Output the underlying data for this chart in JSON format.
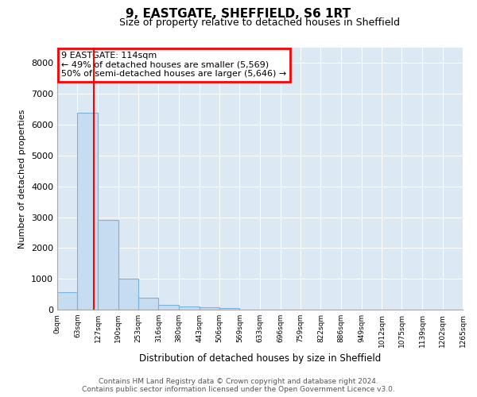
{
  "title": "9, EASTGATE, SHEFFIELD, S6 1RT",
  "subtitle": "Size of property relative to detached houses in Sheffield",
  "xlabel": "Distribution of detached houses by size in Sheffield",
  "ylabel": "Number of detached properties",
  "bar_color": "#c6dcf0",
  "bar_edge_color": "#7ab3d8",
  "background_color": "#dde8f5",
  "bin_edges": [
    0,
    63,
    127,
    190,
    253,
    316,
    380,
    443,
    506,
    569,
    633,
    696,
    759,
    822,
    886,
    949,
    1012,
    1075,
    1139,
    1202,
    1265
  ],
  "bar_heights": [
    560,
    6400,
    2900,
    1000,
    380,
    165,
    100,
    65,
    50,
    10,
    5,
    3,
    2,
    1,
    1,
    1,
    0,
    0,
    0,
    0
  ],
  "tick_labels": [
    "0sqm",
    "63sqm",
    "127sqm",
    "190sqm",
    "253sqm",
    "316sqm",
    "380sqm",
    "443sqm",
    "506sqm",
    "569sqm",
    "633sqm",
    "696sqm",
    "759sqm",
    "822sqm",
    "886sqm",
    "949sqm",
    "1012sqm",
    "1075sqm",
    "1139sqm",
    "1202sqm",
    "1265sqm"
  ],
  "ylim": [
    0,
    8500
  ],
  "yticks": [
    0,
    1000,
    2000,
    3000,
    4000,
    5000,
    6000,
    7000,
    8000
  ],
  "red_line_x": 114,
  "annotation_title": "9 EASTGATE: 114sqm",
  "annotation_line1": "← 49% of detached houses are smaller (5,569)",
  "annotation_line2": "50% of semi-detached houses are larger (5,646) →",
  "footer_line1": "Contains HM Land Registry data © Crown copyright and database right 2024.",
  "footer_line2": "Contains public sector information licensed under the Open Government Licence v3.0."
}
